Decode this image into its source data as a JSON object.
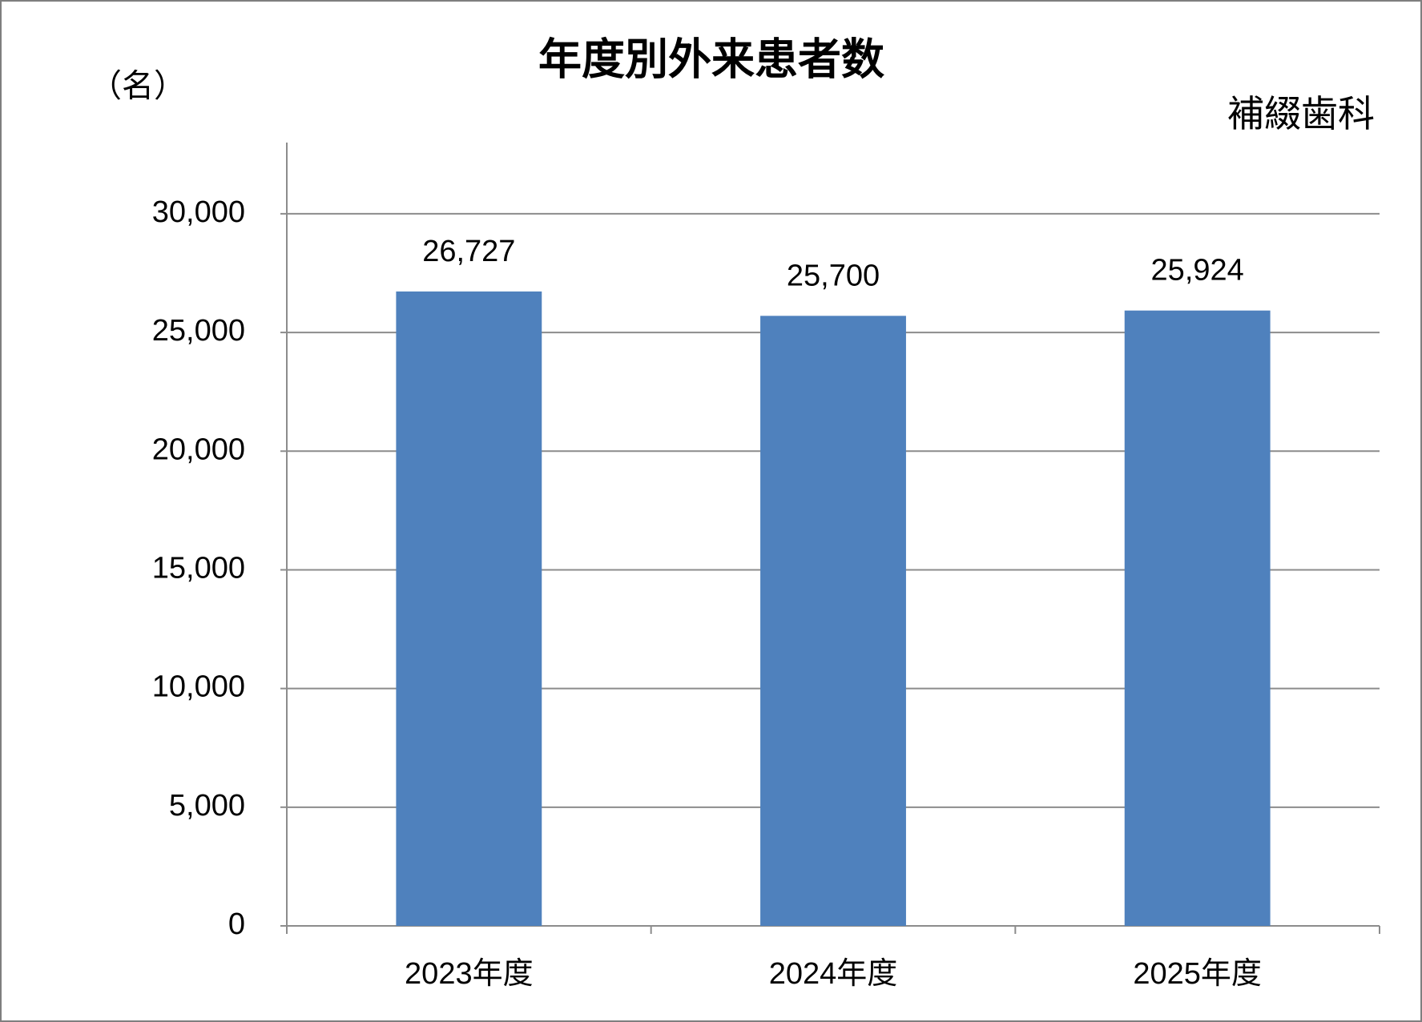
{
  "chart_data": {
    "type": "bar",
    "title": "年度別外来患者数",
    "y_unit_label": "（名）",
    "annotation": "補綴歯科",
    "categories": [
      "2023年度",
      "2024年度",
      "2025年度"
    ],
    "values": [
      26727,
      25700,
      25924
    ],
    "value_labels": [
      "26,727",
      "25,700",
      "25,924"
    ],
    "color": "#4f81bd",
    "ylim": [
      0,
      33000
    ],
    "yticks": [
      0,
      {
        "value": 5000,
        "label": "5,000"
      },
      {
        "value": 10000,
        "label": "10,000"
      },
      {
        "value": 15000,
        "label": "15,000"
      },
      {
        "value": 20000,
        "label": "20,000"
      },
      {
        "value": 25000,
        "label": "25,000"
      },
      {
        "value": 30000,
        "label": "30,000"
      }
    ],
    "grid": true
  }
}
